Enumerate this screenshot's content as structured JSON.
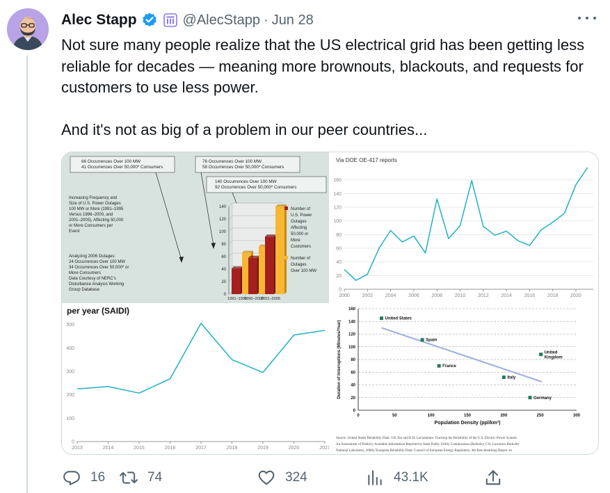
{
  "tweet": {
    "author_name": "Alec Stapp",
    "handle": "@AlecStapp",
    "separator": "·",
    "date": "Jun 28",
    "paragraphs": [
      "Not sure many people realize that the US electrical grid has been getting less reliable for decades — meaning more brownouts, blackouts, and requests for customers to use less power.",
      "And it's not as big of a problem in our peer countries..."
    ]
  },
  "icons": {
    "verified": "verified-badge-icon",
    "affiliation": "affiliation-badge-icon",
    "more": "more-dots-icon",
    "reply": "reply-icon",
    "retweet": "retweet-icon",
    "like": "heart-icon",
    "views": "views-icon",
    "share": "share-icon"
  },
  "colors": {
    "verified": "#1d9bf0",
    "affiliation": "#8c7ae6",
    "text": "#0f1419",
    "muted": "#536471",
    "line": "#1fb0c4",
    "bar_red": "#a3201e",
    "bar_yellow": "#f7b733",
    "trend": "#9fb3dd",
    "point": "#207a5e"
  },
  "stats": {
    "replies": "16",
    "retweets": "74",
    "likes": "324",
    "views": "43.1K"
  },
  "media": {
    "panel1": {
      "callouts": [
        [
          "66 Occurrences Over 100 MW",
          "41 Occurrences Over 50,000* Consumers"
        ],
        [
          "76 Occurrences Over 100 MW",
          "58 Occurrences Over 50,000* Consumers"
        ],
        [
          "140 Occurrences Over 100 MW",
          "92 Occurrences Over 50,000* Consumers"
        ]
      ],
      "desc_lines": [
        "Increasing Frequency and",
        "Size of U.S. Power Outages",
        "100 MW or More (1991–1995",
        "Versus 1996–2000, and",
        "2001–2005), Affecting 50,000",
        "or More Consumers per",
        "Event"
      ],
      "analysis_lines": [
        "Analyzing 2006 Outages:",
        "24 Occurrences Over 100 MW",
        "34 Occurrences  Over 50,000* or",
        "More Consumers",
        "Data Courtesy of NERC's",
        "Disturbance Analysis Working",
        "Group Database"
      ],
      "legend_red_lines": [
        "Number of",
        "U.S. Power",
        "Outages",
        "Affecting",
        "50,000 or",
        "More",
        "Customers"
      ],
      "legend_yellow_lines": [
        "Number of",
        "Outages",
        "Over 100 MW"
      ]
    },
    "panel2": {
      "caption": "Via DOE OE-417 reports"
    },
    "panel3": {
      "title": "per year (SAIDI)"
    },
    "panel4": {
      "source_lines": [
        "Source: United States Reliability Data: J.H. Eto and K.H. Lacommare, Tracking the Reliability of the U.S. Electric Power System:",
        "An Assessment of Publicly Available Information Reported to State Public Utility Commissions (Berkeley, CA: Lawrence Berkeley",
        "National Laboratory, 2008); European Reliability Data: Council of European Energy Regulators, 4th Benchmarking Report on"
      ]
    }
  },
  "chart_data": [
    {
      "type": "bar",
      "categories": [
        "1991–1995",
        "1996–2000",
        "2001–2005"
      ],
      "series": [
        {
          "name": "Number of U.S. Power Outages Affecting 50,000 or More Customers",
          "values": [
            41,
            58,
            92
          ]
        },
        {
          "name": "Number of Outages Over 100 MW",
          "values": [
            66,
            76,
            140
          ]
        }
      ],
      "ylim": [
        0,
        140
      ],
      "yticks": [
        0,
        20,
        40,
        60,
        80,
        100,
        120,
        140
      ],
      "legend": "right"
    },
    {
      "type": "line",
      "x": [
        2000,
        2001,
        2002,
        2003,
        2004,
        2005,
        2006,
        2007,
        2008,
        2009,
        2010,
        2011,
        2012,
        2013,
        2014,
        2015,
        2016,
        2017,
        2018,
        2019,
        2020,
        2021
      ],
      "values": [
        29,
        13,
        22,
        60,
        86,
        69,
        78,
        53,
        132,
        74,
        93,
        159,
        92,
        79,
        85,
        71,
        64,
        87,
        98,
        111,
        153,
        178
      ],
      "xticks": [
        2000,
        2002,
        2004,
        2006,
        2008,
        2010,
        2012,
        2014,
        2016,
        2018,
        2020
      ],
      "yticks": [
        0,
        20,
        40,
        60,
        80,
        100,
        120,
        140,
        160
      ],
      "xlim": [
        2000,
        2021.5
      ],
      "ylim": [
        0,
        180
      ],
      "grid": true
    },
    {
      "type": "line",
      "title": "per year (SAIDI)",
      "x": [
        2013,
        2014,
        2015,
        2016,
        2017,
        2018,
        2019,
        2020,
        2021
      ],
      "values": [
        225,
        235,
        207,
        268,
        505,
        350,
        295,
        455,
        475
      ],
      "xticks": [
        2013,
        2014,
        2015,
        2016,
        2017,
        2018,
        2019,
        2020,
        2021
      ],
      "yticks": [
        0,
        100,
        200,
        300,
        400,
        500
      ],
      "ylim": [
        0,
        520
      ],
      "grid": false
    },
    {
      "type": "scatter",
      "xlabel": "Population Density (ppl/km²)",
      "ylabel": "Duration of Interruptions (Minutes/Year)",
      "points": [
        {
          "label": "United States",
          "x": 32,
          "y": 145
        },
        {
          "label": "Spain",
          "x": 88,
          "y": 111
        },
        {
          "label": "France",
          "x": 111,
          "y": 70
        },
        {
          "label": "United Kingdom",
          "x": 251,
          "y": 88
        },
        {
          "label": "Italy",
          "x": 200,
          "y": 52
        },
        {
          "label": "Germany",
          "x": 236,
          "y": 20
        }
      ],
      "trendline": [
        [
          32,
          130
        ],
        [
          252,
          45
        ]
      ],
      "xticks": [
        0,
        50,
        100,
        150,
        200,
        250,
        300
      ],
      "yticks": [
        0,
        20,
        40,
        60,
        80,
        100,
        120,
        140,
        160
      ],
      "xlim": [
        0,
        300
      ],
      "ylim": [
        0,
        160
      ],
      "grid": true
    }
  ]
}
